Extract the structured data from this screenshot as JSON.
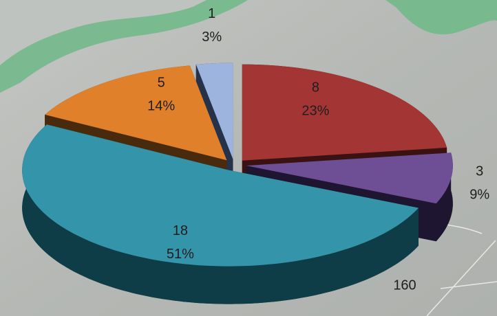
{
  "chart_data": {
    "type": "pie",
    "categories": [
      null,
      null,
      null,
      null,
      null
    ],
    "values": [
      8,
      3,
      18,
      5,
      1
    ],
    "percent_labels": [
      "23%",
      "9%",
      "51%",
      "14%",
      "3%"
    ],
    "colors": [
      "#a33535",
      "#6e4f96",
      "#3494a9",
      "#e0802b",
      "#9db5de"
    ],
    "side_colors": [
      "#3a1212",
      "#1e1530",
      "#0f3d47",
      "#4a2a0c",
      "#25324a"
    ],
    "start_angle": 0,
    "annotations": [
      "160"
    ]
  }
}
